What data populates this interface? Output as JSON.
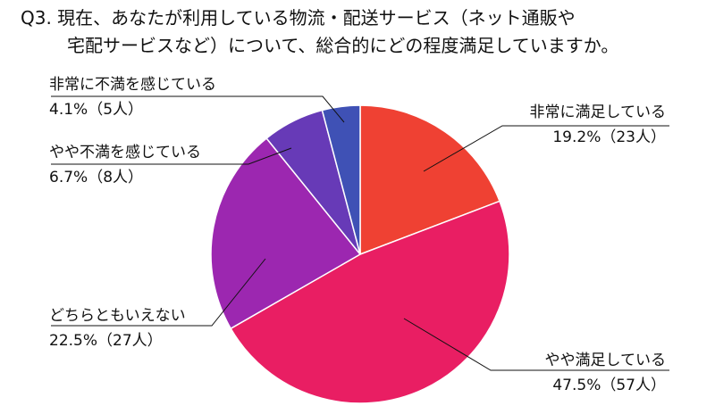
{
  "chart_data": {
    "type": "pie",
    "title_lines": [
      "Q3. 現在、あなたが利用している物流・配送サービス（ネット通販や",
      "宅配サービスなど）について、総合的にどの程度満足していますか。"
    ],
    "slices": [
      {
        "label": "非常に満足している",
        "value_text": "19.2%（23人）",
        "percent": 19.2,
        "count": 23,
        "color": "#ef4133"
      },
      {
        "label": "やや満足している",
        "value_text": "47.5%（57人）",
        "percent": 47.5,
        "count": 57,
        "color": "#e91e63"
      },
      {
        "label": "どちらともいえない",
        "value_text": "22.5%（27人）",
        "percent": 22.5,
        "count": 27,
        "color": "#9c27b0"
      },
      {
        "label": "やや不満を感じている",
        "value_text": "6.7%（8人）",
        "percent": 6.7,
        "count": 8,
        "color": "#673ab7"
      },
      {
        "label": "非常に不満を感じている",
        "value_text": "4.1%（5人）",
        "percent": 4.1,
        "count": 5,
        "color": "#3f51b5"
      }
    ]
  }
}
